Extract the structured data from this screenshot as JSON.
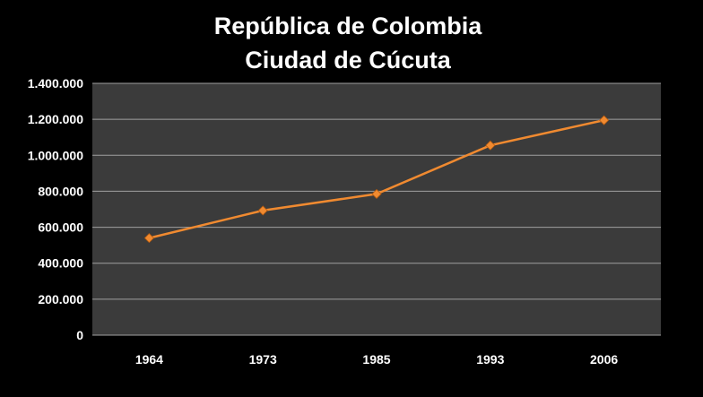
{
  "chart_data": {
    "type": "line",
    "title_lines": [
      "República de Colombia",
      "Ciudad de Cúcuta"
    ],
    "x_labels": [
      "1964",
      "1973",
      "1985",
      "1993",
      "2006"
    ],
    "y_tick_labels": [
      "0",
      "200.000",
      "400.000",
      "600.000",
      "800.000",
      "1.000.000",
      "1.200.000",
      "1.400.000"
    ],
    "ylim": [
      0,
      1400000
    ],
    "series": [
      {
        "values": [
          540000,
          693000,
          785000,
          1055000,
          1195000
        ],
        "color": "#f08a30"
      }
    ],
    "grid": true,
    "marker": "diamond",
    "plot_background": "#3b3b3b",
    "gridline_color": "#a0a0a0",
    "text_color": "#ffffff"
  }
}
